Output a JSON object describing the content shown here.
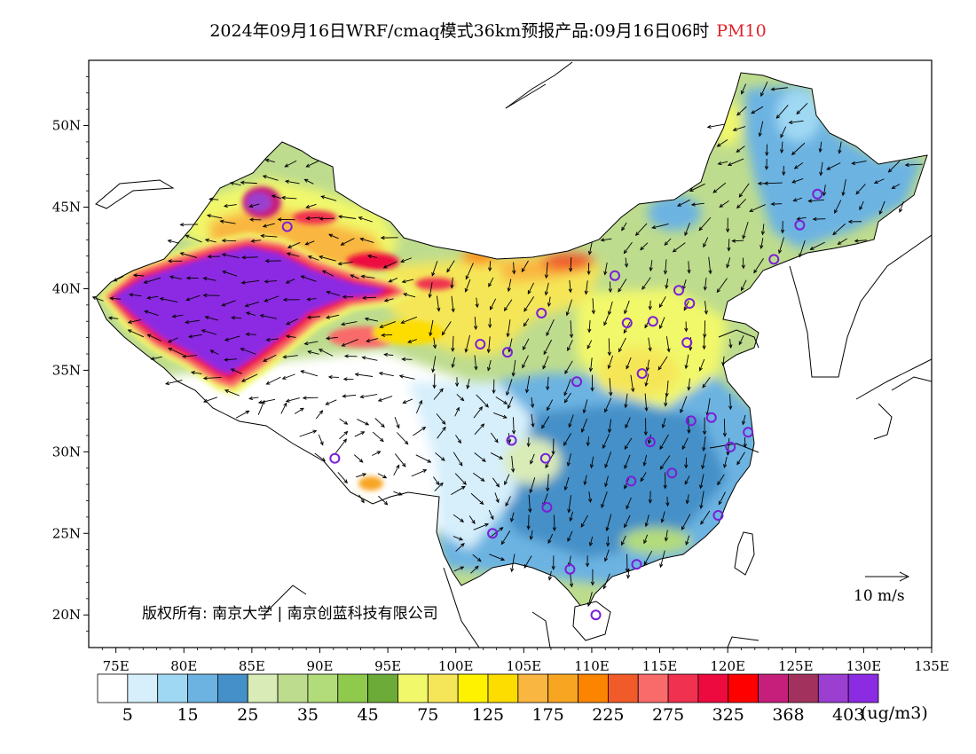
{
  "title": {
    "main": "2024年09月16日WRF/cmaq模式36km预报产品:09月16日06时",
    "variable": "PM10"
  },
  "map": {
    "lon_ticks": [
      "75E",
      "80E",
      "85E",
      "90E",
      "95E",
      "100E",
      "105E",
      "110E",
      "115E",
      "120E",
      "125E",
      "130E",
      "135E"
    ],
    "lat_ticks": [
      "20N",
      "25N",
      "30N",
      "35N",
      "40N",
      "45N",
      "50N"
    ],
    "lon_range": [
      73,
      135
    ],
    "lat_range": [
      18,
      54
    ],
    "copyright": "版权所有: 南京大学 | 南京创蓝科技有限公司",
    "wind_scale_label": "10 m/s"
  },
  "colorbar": {
    "colors": [
      "#ffffff",
      "#d6effb",
      "#9fd8f3",
      "#6cb3e2",
      "#4590c8",
      "#d9ebb6",
      "#bedc8e",
      "#b2dc7a",
      "#8fca4d",
      "#6cab38",
      "#f1f86a",
      "#f5e659",
      "#fff200",
      "#fddc00",
      "#f9b640",
      "#f8a521",
      "#fb8500",
      "#f15a29",
      "#f96a6a",
      "#f0314f",
      "#ed0a3f",
      "#ff0000",
      "#c61e7b",
      "#a2325d",
      "#9a3fd0",
      "#8b2be2"
    ],
    "labels": [
      "5",
      "15",
      "25",
      "35",
      "45",
      "75",
      "125",
      "175",
      "225",
      "275",
      "325",
      "368",
      "403"
    ],
    "units": "(ug/m3)"
  },
  "stations": [
    {
      "lon": 87.6,
      "lat": 43.8
    },
    {
      "lon": 91.1,
      "lat": 29.6
    },
    {
      "lon": 101.8,
      "lat": 36.6
    },
    {
      "lon": 103.8,
      "lat": 36.1
    },
    {
      "lon": 106.3,
      "lat": 38.5
    },
    {
      "lon": 111.7,
      "lat": 40.8
    },
    {
      "lon": 112.6,
      "lat": 37.9
    },
    {
      "lon": 114.5,
      "lat": 38.0
    },
    {
      "lon": 116.4,
      "lat": 39.9
    },
    {
      "lon": 117.2,
      "lat": 39.1
    },
    {
      "lon": 117.0,
      "lat": 36.7
    },
    {
      "lon": 113.7,
      "lat": 34.8
    },
    {
      "lon": 108.9,
      "lat": 34.3
    },
    {
      "lon": 104.1,
      "lat": 30.7
    },
    {
      "lon": 106.6,
      "lat": 29.6
    },
    {
      "lon": 106.7,
      "lat": 26.6
    },
    {
      "lon": 102.7,
      "lat": 25.0
    },
    {
      "lon": 108.4,
      "lat": 22.8
    },
    {
      "lon": 113.3,
      "lat": 23.1
    },
    {
      "lon": 110.3,
      "lat": 20.0
    },
    {
      "lon": 112.9,
      "lat": 28.2
    },
    {
      "lon": 115.9,
      "lat": 28.7
    },
    {
      "lon": 114.3,
      "lat": 30.6
    },
    {
      "lon": 117.3,
      "lat": 31.9
    },
    {
      "lon": 118.8,
      "lat": 32.1
    },
    {
      "lon": 120.2,
      "lat": 30.3
    },
    {
      "lon": 121.5,
      "lat": 31.2
    },
    {
      "lon": 119.3,
      "lat": 26.1
    },
    {
      "lon": 123.4,
      "lat": 41.8
    },
    {
      "lon": 125.3,
      "lat": 43.9
    },
    {
      "lon": 126.6,
      "lat": 45.8
    }
  ]
}
